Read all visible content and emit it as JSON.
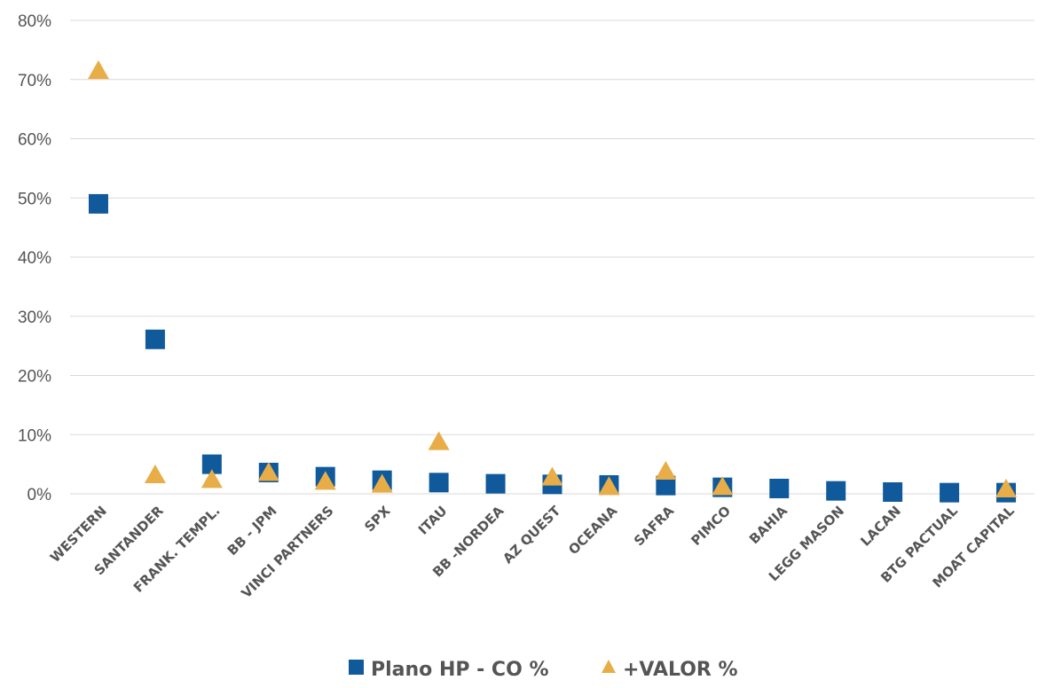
{
  "chart_data": {
    "type": "scatter",
    "categories": [
      "WESTERN",
      "SANTANDER",
      "FRANK. TEMPL.",
      "BB - JPM",
      "VINCI PARTNERS",
      "SPX",
      "ITAU",
      "BB -NORDEA",
      "AZ QUEST",
      "OCEANA",
      "SAFRA",
      "PIMCO",
      "BAHIA",
      "LEGG MASON",
      "LACAN",
      "BTG PACTUAL",
      "MOAT CAPITAL"
    ],
    "series": [
      {
        "name": "Plano HP - CO %",
        "marker": "square",
        "color": "#105a9c",
        "values": [
          49.0,
          26.1,
          5.0,
          3.6,
          2.9,
          2.3,
          1.9,
          1.7,
          1.6,
          1.5,
          1.4,
          1.1,
          0.9,
          0.5,
          0.3,
          0.2,
          0.2
        ]
      },
      {
        "name": "+VALOR %",
        "marker": "triangle",
        "color": "#e8ad46",
        "values": [
          71.3,
          3.0,
          2.2,
          3.4,
          1.9,
          1.4,
          8.6,
          null,
          2.6,
          1.0,
          3.6,
          1.0,
          null,
          null,
          null,
          null,
          0.6
        ]
      }
    ],
    "ylim": [
      0,
      80
    ],
    "yticks": [
      "0%",
      "10%",
      "20%",
      "30%",
      "40%",
      "50%",
      "60%",
      "70%",
      "80%"
    ],
    "grid": true,
    "legend_position": "bottom-center",
    "colors": {
      "gridline": "#d9d9d9",
      "axis_text": "#555555"
    }
  }
}
